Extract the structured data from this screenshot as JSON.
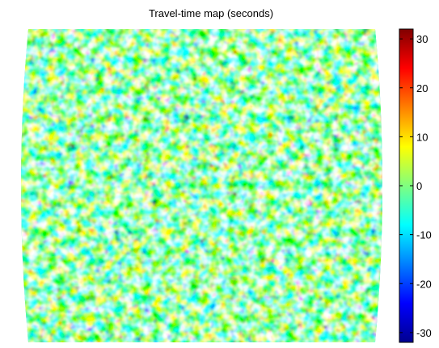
{
  "chart_data": {
    "type": "heatmap",
    "title": "Travel-time map (seconds)",
    "xlabel": "",
    "ylabel": "",
    "colorbar": {
      "colormap": "jet",
      "range": [
        -32,
        32
      ],
      "ticks": [
        30,
        20,
        10,
        0,
        -10,
        -20,
        -30
      ],
      "tick_labels": [
        "30",
        "20",
        "10",
        "0",
        "-10",
        "-20",
        "-30"
      ]
    },
    "map": {
      "projection": "curved-edge (lens-shaped) domain",
      "field": "random fluctuations of travel time",
      "value_range": [
        -30,
        32
      ],
      "dominant_value": 0
    }
  }
}
